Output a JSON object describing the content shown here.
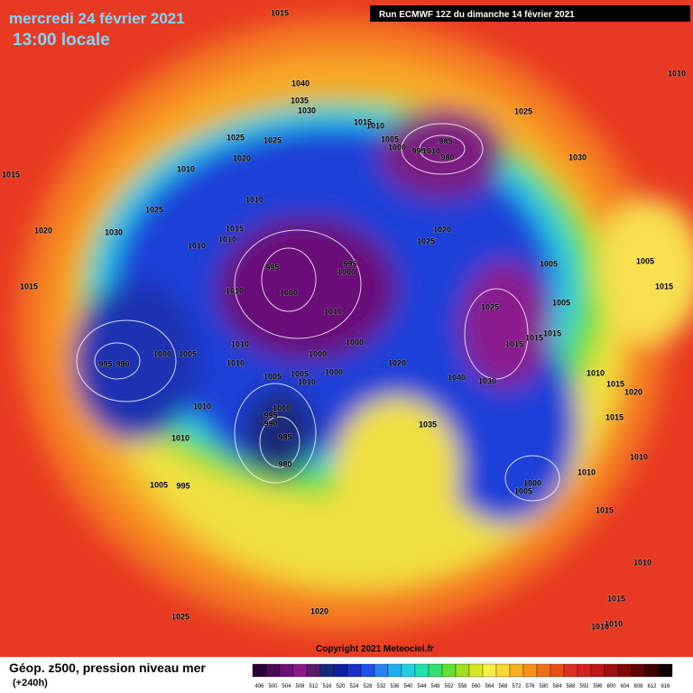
{
  "header": {
    "date": "mercredi 24 février 2021",
    "time": "13:00 locale",
    "run": "Run ECMWF 12Z du dimanche 14 février 2021"
  },
  "copyright": "Copyright 2021 Meteociel.fr",
  "footer": {
    "title": "Géop. z500, pression niveau mer",
    "lead": "(+240h)"
  },
  "isobar_labels": [
    1015,
    1010,
    1040,
    1035,
    1030,
    1015,
    1010,
    1025,
    1025,
    1025,
    1005,
    1000,
    985,
    995,
    1010,
    980,
    1020,
    1030,
    1010,
    1015,
    1010,
    1025,
    1015,
    1010,
    1020,
    1030,
    1020,
    1025,
    1010,
    995,
    995,
    1005,
    1000,
    1000,
    1010,
    1015,
    1005,
    1025,
    1010,
    1005,
    1015,
    1010,
    1000,
    1000,
    1005,
    995,
    990,
    1015,
    1015,
    1015,
    1000,
    1010,
    1020,
    1000,
    1005,
    1005,
    1040,
    1030,
    1010,
    1010,
    1015,
    1020,
    1000,
    1010,
    995,
    990,
    1035,
    1015,
    985,
    1010,
    980,
    1010,
    1010,
    1005,
    995,
    1000,
    1005,
    1015,
    1010,
    1015,
    1020,
    1025,
    1010,
    1010
  ],
  "legend": {
    "values": [
      496,
      500,
      504,
      508,
      512,
      516,
      520,
      524,
      528,
      532,
      536,
      540,
      544,
      548,
      552,
      556,
      560,
      564,
      568,
      572,
      576,
      580,
      584,
      588,
      592,
      596,
      600,
      604,
      608,
      612,
      616
    ],
    "colors": [
      "#2b0033",
      "#4a0a55",
      "#6a1078",
      "#8a1a8c",
      "#5c1a6a",
      "#1a2a7a",
      "#1020a0",
      "#1a30c8",
      "#2050e8",
      "#2a80f0",
      "#20b0f0",
      "#20d0e0",
      "#20e0b0",
      "#30e070",
      "#60e030",
      "#a0e020",
      "#d8e820",
      "#f8f040",
      "#f8d830",
      "#f8b020",
      "#f89018",
      "#f07018",
      "#e85018",
      "#e03020",
      "#d82020",
      "#c01818",
      "#a01010",
      "#800808",
      "#600404",
      "#400000",
      "#100000"
    ]
  }
}
